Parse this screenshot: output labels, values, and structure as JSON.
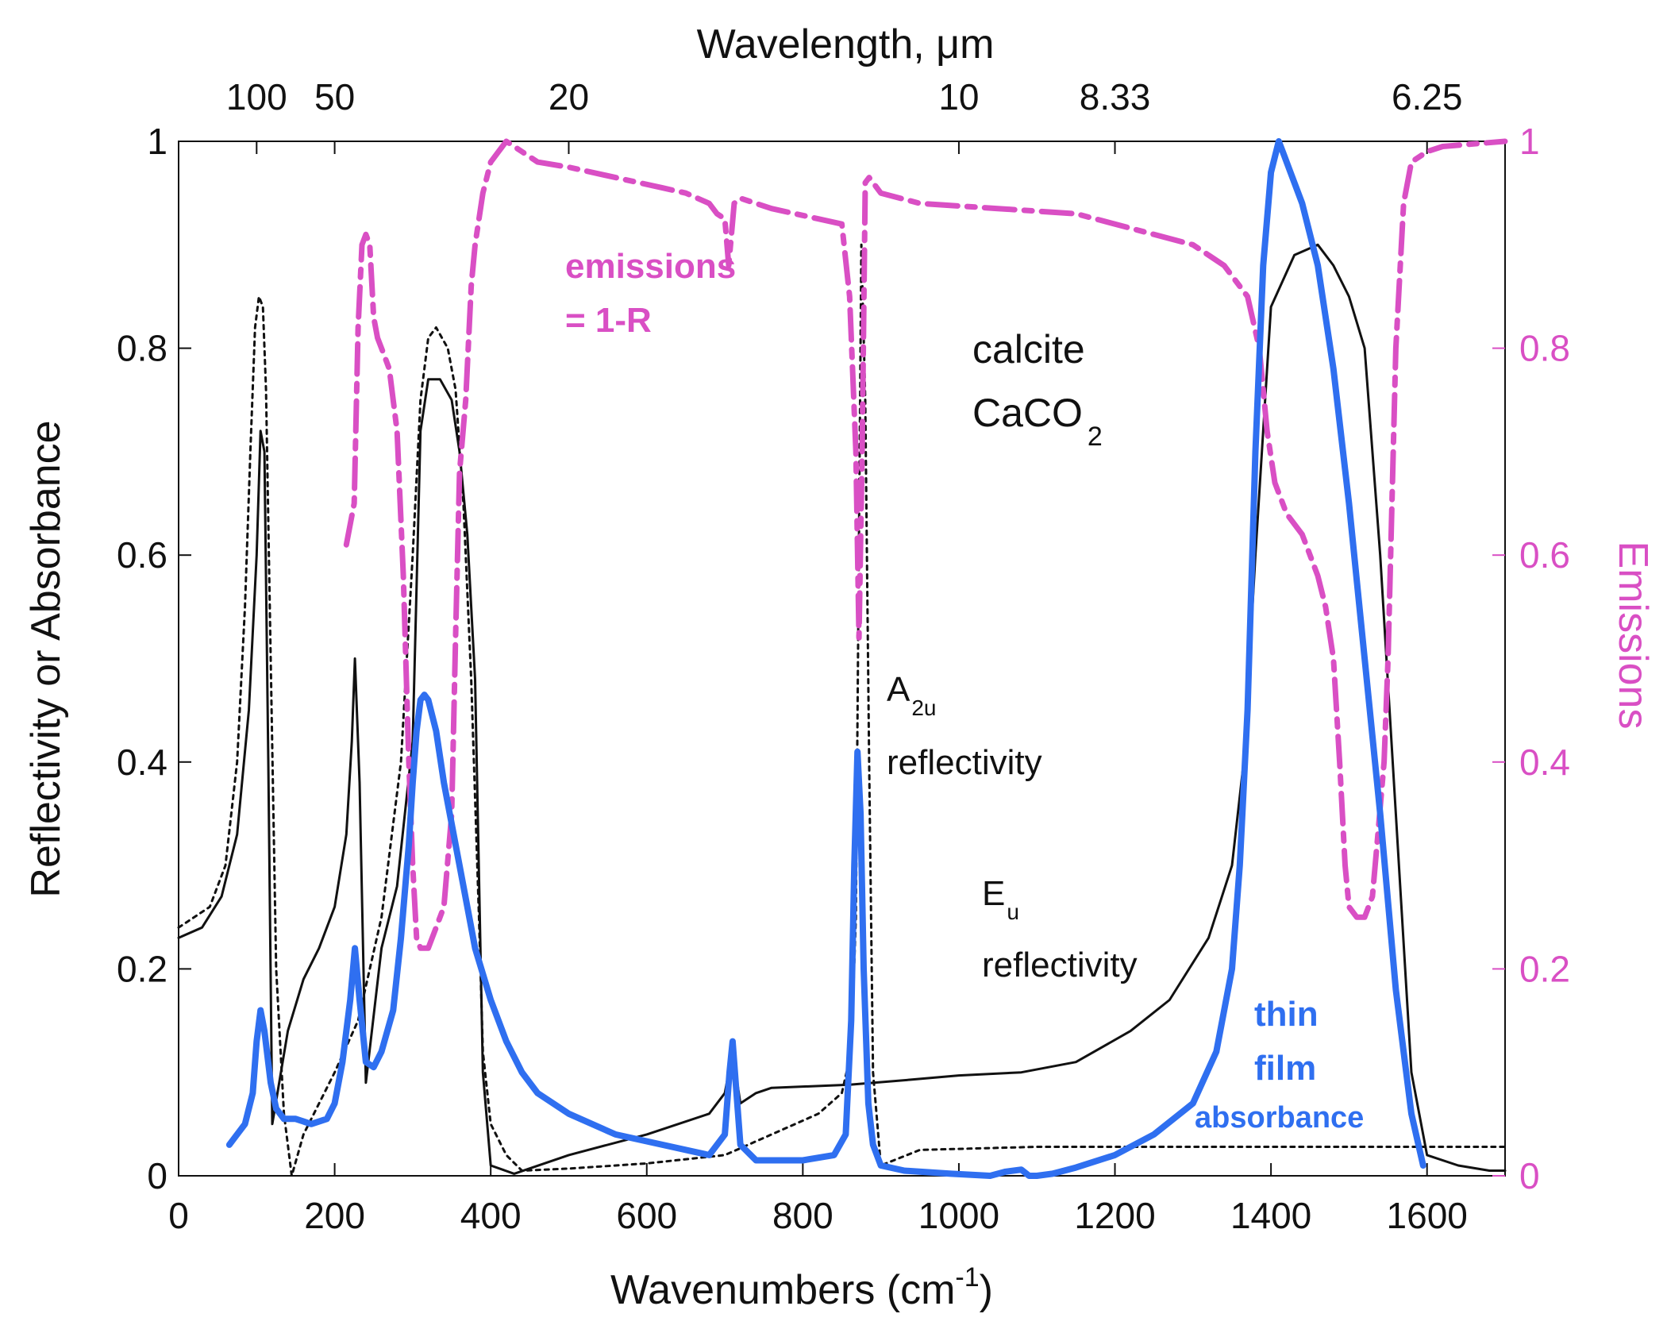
{
  "colors": {
    "black": "#111111",
    "emission": "#d94fc4",
    "absorbance": "#2f6ff0"
  },
  "chart_data": {
    "type": "line",
    "title": "",
    "xlabel": "Wavenumbers (cm",
    "xlabel_sup": "-1",
    "xlabel_close": ")",
    "ylabel": "Reflectivity or Absorbance",
    "y2label": "Emissions",
    "top_axis_label": "Wavelength, μm",
    "xlim": [
      0,
      1700
    ],
    "ylim": [
      0,
      1
    ],
    "y2lim": [
      0,
      1
    ],
    "x_ticks": [
      {
        "value": 0,
        "label": "0"
      },
      {
        "value": 200,
        "label": "200"
      },
      {
        "value": 400,
        "label": "400"
      },
      {
        "value": 600,
        "label": "600"
      },
      {
        "value": 800,
        "label": "800"
      },
      {
        "value": 1000,
        "label": "1000"
      },
      {
        "value": 1200,
        "label": "1200"
      },
      {
        "value": 1400,
        "label": "1400"
      },
      {
        "value": 1600,
        "label": "1600"
      }
    ],
    "y_ticks": [
      {
        "value": 0,
        "label": "0"
      },
      {
        "value": 0.2,
        "label": "0.2"
      },
      {
        "value": 0.4,
        "label": "0.4"
      },
      {
        "value": 0.6,
        "label": "0.6"
      },
      {
        "value": 0.8,
        "label": "0.8"
      },
      {
        "value": 1,
        "label": "1"
      }
    ],
    "y2_ticks": [
      {
        "value": 0,
        "label": "0"
      },
      {
        "value": 0.2,
        "label": "0.2"
      },
      {
        "value": 0.4,
        "label": "0.4"
      },
      {
        "value": 0.6,
        "label": "0.6"
      },
      {
        "value": 0.8,
        "label": "0.8"
      },
      {
        "value": 1,
        "label": "1"
      }
    ],
    "top_ticks": [
      {
        "value": 100,
        "label": "100"
      },
      {
        "value": 200,
        "label": "50"
      },
      {
        "value": 500,
        "label": "20"
      },
      {
        "value": 1000,
        "label": "10"
      },
      {
        "value": 1200,
        "label": "8.33"
      },
      {
        "value": 1600,
        "label": "6.25"
      }
    ],
    "annotations": {
      "emissions": "emissions",
      "emissions_eq": "= 1-R",
      "calcite": "calcite",
      "formula": "CaCO",
      "formula_sub": "2",
      "a2u": "A",
      "a2u_sub": "2u",
      "a2u_refl": "reflectivity",
      "eu": "E",
      "eu_sub": "u",
      "eu_refl": "reflectivity",
      "thin": "thin",
      "film": "film",
      "absorbance": "absorbance"
    },
    "series": [
      {
        "name": "Eu reflectivity",
        "style": "solid",
        "axis": "left",
        "x": [
          0,
          30,
          55,
          75,
          90,
          100,
          105,
          110,
          115,
          120,
          140,
          160,
          180,
          200,
          215,
          222,
          226,
          232,
          240,
          260,
          280,
          300,
          310,
          320,
          335,
          350,
          360,
          370,
          380,
          390,
          400,
          430,
          500,
          600,
          680,
          700,
          710,
          720,
          740,
          760,
          860,
          940,
          1000,
          1080,
          1150,
          1220,
          1270,
          1320,
          1350,
          1365,
          1380,
          1400,
          1430,
          1460,
          1480,
          1500,
          1520,
          1540,
          1560,
          1580,
          1600,
          1640,
          1680,
          1700
        ],
        "y": [
          0.23,
          0.24,
          0.27,
          0.33,
          0.45,
          0.6,
          0.72,
          0.7,
          0.4,
          0.05,
          0.14,
          0.19,
          0.22,
          0.26,
          0.33,
          0.42,
          0.5,
          0.38,
          0.09,
          0.22,
          0.28,
          0.42,
          0.72,
          0.77,
          0.77,
          0.75,
          0.7,
          0.62,
          0.48,
          0.1,
          0.01,
          0.002,
          0.02,
          0.04,
          0.06,
          0.08,
          0.12,
          0.07,
          0.08,
          0.085,
          0.088,
          0.093,
          0.097,
          0.1,
          0.11,
          0.14,
          0.17,
          0.23,
          0.3,
          0.4,
          0.6,
          0.84,
          0.89,
          0.9,
          0.88,
          0.85,
          0.8,
          0.6,
          0.35,
          0.1,
          0.02,
          0.01,
          0.005,
          0.005
        ]
      },
      {
        "name": "A2u reflectivity",
        "style": "dotted",
        "axis": "left",
        "x": [
          0,
          40,
          60,
          75,
          85,
          92,
          98,
          103,
          108,
          112,
          118,
          125,
          135,
          145,
          160,
          200,
          230,
          260,
          285,
          300,
          310,
          320,
          330,
          345,
          355,
          365,
          375,
          385,
          390,
          400,
          420,
          440,
          500,
          600,
          700,
          760,
          820,
          850,
          862,
          868,
          875,
          880,
          885,
          890,
          900,
          950,
          1100,
          1300,
          1500,
          1700
        ],
        "y": [
          0.24,
          0.26,
          0.3,
          0.4,
          0.55,
          0.7,
          0.82,
          0.85,
          0.84,
          0.76,
          0.5,
          0.2,
          0.06,
          0.0,
          0.04,
          0.1,
          0.15,
          0.25,
          0.4,
          0.6,
          0.75,
          0.81,
          0.82,
          0.8,
          0.76,
          0.65,
          0.48,
          0.25,
          0.12,
          0.05,
          0.02,
          0.005,
          0.007,
          0.012,
          0.02,
          0.04,
          0.06,
          0.08,
          0.12,
          0.25,
          0.9,
          0.75,
          0.4,
          0.1,
          0.01,
          0.025,
          0.028,
          0.028,
          0.028,
          0.028
        ]
      },
      {
        "name": "emissions = 1-R",
        "style": "dashdot",
        "axis": "right",
        "x": [
          215,
          225,
          230,
          235,
          240,
          245,
          250,
          255,
          260,
          270,
          280,
          288,
          295,
          300,
          305,
          310,
          320,
          330,
          340,
          350,
          355,
          360,
          368,
          375,
          380,
          390,
          400,
          410,
          420,
          430,
          440,
          460,
          500,
          560,
          620,
          650,
          680,
          690,
          700,
          705,
          712,
          720,
          760,
          820,
          850,
          860,
          868,
          872,
          876,
          880,
          885,
          890,
          900,
          950,
          1050,
          1150,
          1250,
          1300,
          1340,
          1370,
          1385,
          1395,
          1405,
          1420,
          1440,
          1460,
          1470,
          1480,
          1488,
          1495,
          1500,
          1510,
          1520,
          1530,
          1537,
          1545,
          1550,
          1555,
          1560,
          1570,
          1580,
          1600,
          1620,
          1700
        ],
        "y": [
          0.61,
          0.65,
          0.82,
          0.9,
          0.91,
          0.9,
          0.83,
          0.81,
          0.8,
          0.78,
          0.72,
          0.58,
          0.4,
          0.3,
          0.23,
          0.22,
          0.22,
          0.24,
          0.26,
          0.35,
          0.52,
          0.68,
          0.75,
          0.86,
          0.9,
          0.95,
          0.98,
          0.99,
          1.0,
          0.995,
          0.99,
          0.98,
          0.975,
          0.965,
          0.955,
          0.95,
          0.94,
          0.93,
          0.925,
          0.88,
          0.94,
          0.945,
          0.935,
          0.925,
          0.92,
          0.85,
          0.7,
          0.52,
          0.7,
          0.96,
          0.965,
          0.96,
          0.95,
          0.94,
          0.935,
          0.93,
          0.91,
          0.9,
          0.88,
          0.85,
          0.8,
          0.72,
          0.67,
          0.64,
          0.62,
          0.58,
          0.55,
          0.5,
          0.4,
          0.3,
          0.26,
          0.25,
          0.25,
          0.27,
          0.33,
          0.4,
          0.5,
          0.65,
          0.8,
          0.94,
          0.98,
          0.99,
          0.995,
          1.0
        ]
      },
      {
        "name": "thin film absorbance",
        "style": "solid-thick",
        "axis": "left",
        "x": [
          65,
          75,
          85,
          95,
          100,
          105,
          110,
          118,
          125,
          135,
          150,
          170,
          190,
          200,
          210,
          220,
          226,
          232,
          240,
          250,
          260,
          275,
          285,
          295,
          300,
          305,
          310,
          315,
          320,
          330,
          340,
          360,
          380,
          400,
          420,
          440,
          460,
          500,
          560,
          620,
          680,
          700,
          706,
          710,
          714,
          720,
          740,
          800,
          840,
          855,
          862,
          866,
          870,
          874,
          878,
          884,
          890,
          900,
          930,
          990,
          1040,
          1060,
          1080,
          1090,
          1100,
          1120,
          1150,
          1200,
          1250,
          1300,
          1330,
          1350,
          1360,
          1370,
          1380,
          1390,
          1400,
          1410,
          1415,
          1425,
          1440,
          1460,
          1480,
          1500,
          1520,
          1540,
          1560,
          1580,
          1595
        ],
        "y": [
          0.03,
          0.04,
          0.05,
          0.08,
          0.13,
          0.16,
          0.14,
          0.09,
          0.065,
          0.055,
          0.055,
          0.05,
          0.055,
          0.07,
          0.11,
          0.17,
          0.22,
          0.17,
          0.11,
          0.105,
          0.12,
          0.16,
          0.23,
          0.32,
          0.38,
          0.43,
          0.46,
          0.465,
          0.46,
          0.43,
          0.38,
          0.3,
          0.22,
          0.17,
          0.13,
          0.1,
          0.08,
          0.06,
          0.04,
          0.03,
          0.02,
          0.04,
          0.1,
          0.13,
          0.09,
          0.03,
          0.015,
          0.015,
          0.02,
          0.04,
          0.15,
          0.3,
          0.41,
          0.35,
          0.2,
          0.07,
          0.03,
          0.01,
          0.005,
          0.002,
          0.0,
          0.004,
          0.006,
          0.0,
          0.0,
          0.002,
          0.008,
          0.02,
          0.04,
          0.07,
          0.12,
          0.2,
          0.3,
          0.45,
          0.7,
          0.88,
          0.97,
          1.0,
          0.99,
          0.97,
          0.94,
          0.88,
          0.78,
          0.65,
          0.5,
          0.35,
          0.18,
          0.06,
          0.01
        ]
      }
    ]
  }
}
